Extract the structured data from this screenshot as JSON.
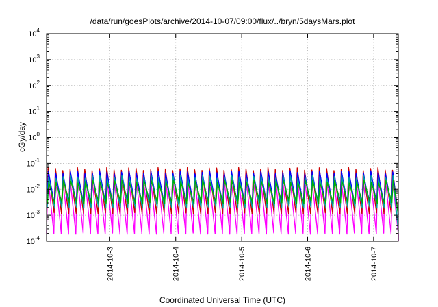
{
  "chart_data": {
    "type": "line",
    "title": "/data/run/goesPlots/archive/2014-10-07/09:00/flux/../bryn/5daysMars.plot",
    "xlabel": "Coordinated Universal Time (UTC)",
    "ylabel": "cGy/day",
    "yscale": "log",
    "ylim": [
      0.0001,
      10000
    ],
    "y_ticks": [
      {
        "base": "10",
        "exp": "-4",
        "value": 0.0001
      },
      {
        "base": "10",
        "exp": "-3",
        "value": 0.001
      },
      {
        "base": "10",
        "exp": "-2",
        "value": 0.01
      },
      {
        "base": "10",
        "exp": "-1",
        "value": 0.1
      },
      {
        "base": "10",
        "exp": "0",
        "value": 1
      },
      {
        "base": "10",
        "exp": "1",
        "value": 10
      },
      {
        "base": "10",
        "exp": "2",
        "value": 100
      },
      {
        "base": "10",
        "exp": "3",
        "value": 1000
      },
      {
        "base": "10",
        "exp": "4",
        "value": 10000
      }
    ],
    "xlim": [
      "2014-10-02 01:00",
      "2014-10-07 09:00"
    ],
    "x_ticks": [
      "2014-10-3",
      "2014-10-4",
      "2014-10-5",
      "2014-10-6",
      "2014-10-7"
    ],
    "grid": true,
    "periodic_pattern": {
      "cycles_per_day": 9,
      "peak_to_trough_decades": 1.2
    },
    "series": [
      {
        "color": "#ff00ff",
        "peak": 0.035,
        "trough": 0.0002,
        "end": 0.0001
      },
      {
        "color": "#cc0000",
        "peak": 0.06,
        "trough": 0.0012,
        "end": 0.0011
      },
      {
        "color": "#0000ff",
        "peak": 0.045,
        "trough": 0.0025,
        "end": 0.0009
      },
      {
        "color": "#00a0a0",
        "peak": 0.03,
        "trough": 0.002,
        "end": 0.00025
      },
      {
        "color": "#00b000",
        "peak": 0.02,
        "trough": 0.003,
        "end": 0.001
      }
    ]
  }
}
